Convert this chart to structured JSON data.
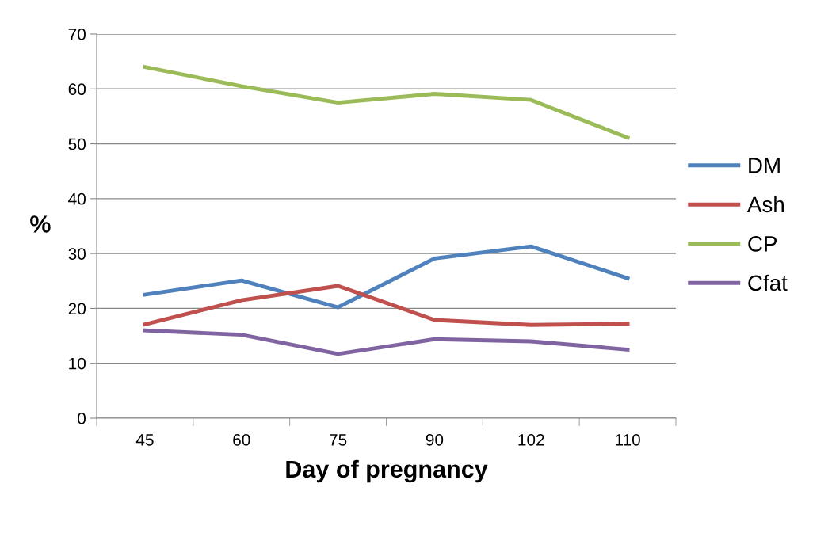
{
  "chart_data": {
    "type": "line",
    "xlabel": "Day of pregnancy",
    "ylabel": "%",
    "categories": [
      "45",
      "60",
      "75",
      "90",
      "102",
      "110"
    ],
    "series": [
      {
        "name": "DM",
        "color": "#4f81bd",
        "values": [
          22.5,
          25.1,
          20.2,
          29.1,
          31.3,
          25.5
        ]
      },
      {
        "name": "Ash",
        "color": "#c0504d",
        "values": [
          17.1,
          21.5,
          24.1,
          17.9,
          17.0,
          17.2
        ]
      },
      {
        "name": "CP",
        "color": "#9bbb59",
        "values": [
          64.0,
          60.5,
          57.5,
          59.1,
          58.0,
          51.1
        ]
      },
      {
        "name": "Cfat",
        "color": "#8064a2",
        "values": [
          16.0,
          15.2,
          11.7,
          14.4,
          14.0,
          12.5
        ]
      }
    ],
    "ylim": [
      0,
      70
    ],
    "yticks": [
      0,
      10,
      20,
      30,
      40,
      50,
      60,
      70
    ],
    "grid": "y",
    "legend": "right",
    "marker": "none",
    "line_style": "solid"
  }
}
